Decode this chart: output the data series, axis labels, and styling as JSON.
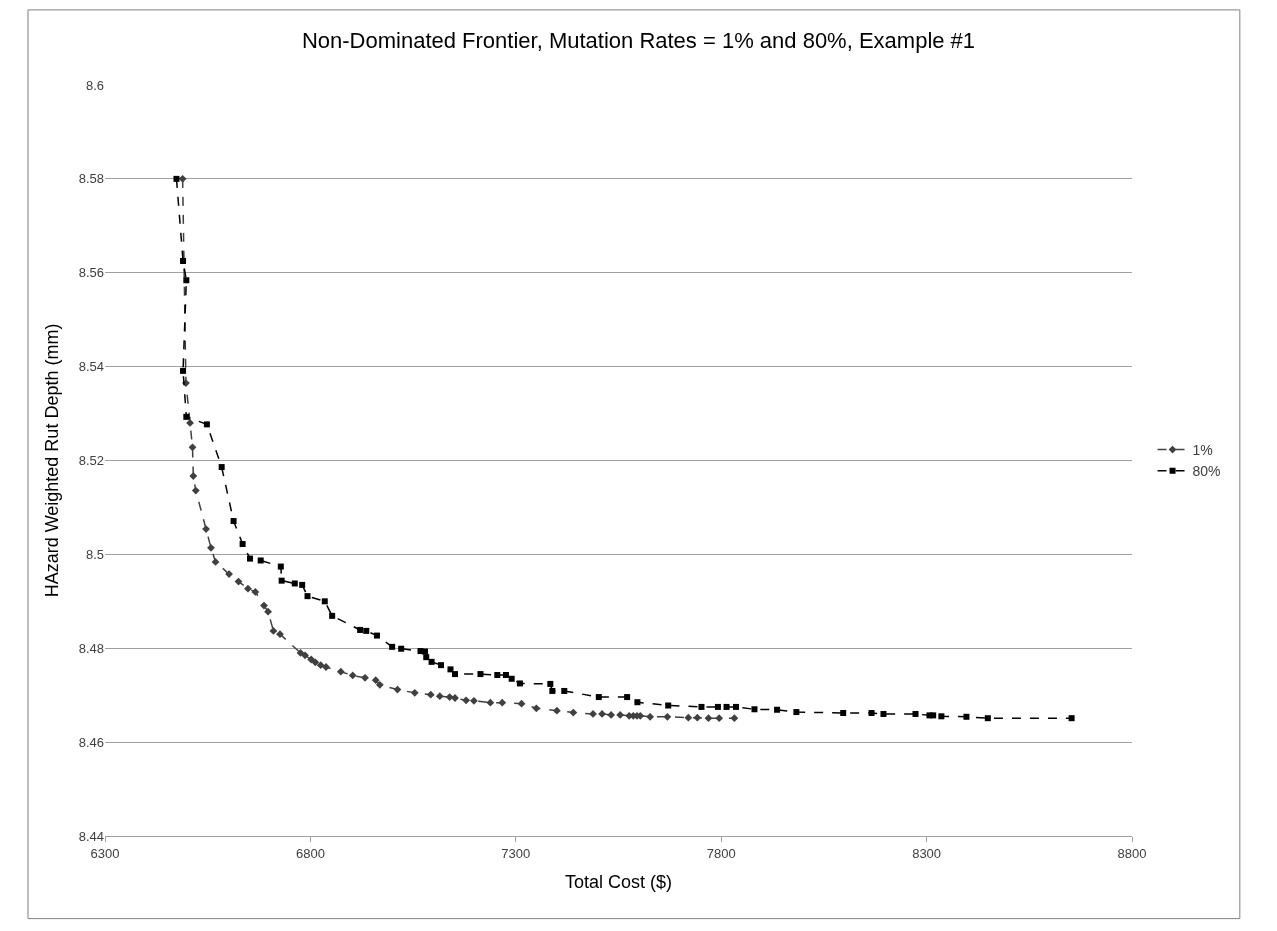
{
  "chart_data": {
    "type": "line",
    "title": "Non-Dominated Frontier, Mutation Rates = 1% and 80%, Example #1",
    "xlabel": "Total Cost ($)",
    "ylabel": "HAzard Weighted Rut Depth (mm)",
    "xlim": [
      6300,
      8800
    ],
    "xticks": [
      6300,
      6800,
      7300,
      7800,
      8300,
      8800
    ],
    "ylim": [
      8.44,
      8.6
    ],
    "yticks": [
      8.44,
      8.46,
      8.48,
      {
        "value": 8.5,
        "label": "8.5"
      },
      8.52,
      8.54,
      8.56,
      8.58,
      {
        "value": 8.6,
        "label": "8.6"
      }
    ],
    "grid": "y",
    "legend": "right",
    "line_style": "dashed",
    "series": [
      {
        "name": "1%",
        "color": "#404040",
        "marker": "diamond",
        "x": [
          6489,
          6497,
          6507,
          6513,
          6515,
          6521,
          6546,
          6558,
          6569,
          6602,
          6625,
          6648,
          6666,
          6687,
          6697,
          6710,
          6726,
          6776,
          6787,
          6802,
          6812,
          6825,
          6838,
          6874,
          6903,
          6933,
          6959,
          6969,
          7012,
          7054,
          7093,
          7115,
          7139,
          7152,
          7179,
          7198,
          7238,
          7267,
          7314,
          7350,
          7400,
          7440,
          7488,
          7510,
          7532,
          7554,
          7576,
          7586,
          7595,
          7603,
          7627,
          7669,
          7720,
          7742,
          7769,
          7795,
          7832
        ],
        "values": [
          8.58,
          8.5365,
          8.528,
          8.5228,
          8.5167,
          8.5136,
          8.5054,
          8.5014,
          8.4984,
          8.4958,
          8.4942,
          8.4927,
          8.492,
          8.4891,
          8.4878,
          8.4837,
          8.483,
          8.479,
          8.4785,
          8.4776,
          8.477,
          8.4764,
          8.476,
          8.475,
          8.4742,
          8.4737,
          8.4732,
          8.4722,
          8.4712,
          8.4705,
          8.4701,
          8.4698,
          8.4696,
          8.4694,
          8.4689,
          8.4688,
          8.4684,
          8.4684,
          8.4682,
          8.4672,
          8.4667,
          8.4663,
          8.466,
          8.466,
          8.4658,
          8.4658,
          8.4656,
          8.4656,
          8.4656,
          8.4656,
          8.4654,
          8.4654,
          8.4652,
          8.4652,
          8.4651,
          8.4651,
          8.4651
        ]
      },
      {
        "name": "80%",
        "color": "#000000",
        "marker": "square",
        "x": [
          6474,
          6490,
          6498,
          6490,
          6498,
          6548,
          6584,
          6613,
          6635,
          6653,
          6679,
          6728,
          6730,
          6762,
          6780,
          6793,
          6835,
          6853,
          6921,
          6936,
          6962,
          6999,
          7021,
          7068,
          7079,
          7082,
          7095,
          7118,
          7141,
          7152,
          7214,
          7255,
          7276,
          7290,
          7310,
          7384,
          7389,
          7418,
          7502,
          7571,
          7596,
          7671,
          7752,
          7792,
          7813,
          7836,
          7881,
          7936,
          7983,
          8097,
          8166,
          8195,
          8273,
          8307,
          8316,
          8336,
          8397,
          8449,
          8653
        ],
        "values": [
          8.58,
          8.5625,
          8.5584,
          8.5391,
          8.5293,
          8.5277,
          8.5186,
          8.5071,
          8.5022,
          8.4991,
          8.4987,
          8.4974,
          8.4944,
          8.4938,
          8.4935,
          8.4911,
          8.49,
          8.4869,
          8.4839,
          8.4837,
          8.4827,
          8.4803,
          8.4799,
          8.4794,
          8.4793,
          8.4781,
          8.4771,
          8.4764,
          8.4755,
          8.4745,
          8.4745,
          8.4743,
          8.4743,
          8.4735,
          8.4725,
          8.4724,
          8.4709,
          8.4709,
          8.4696,
          8.4696,
          8.4685,
          8.4678,
          8.4675,
          8.4675,
          8.4675,
          8.4675,
          8.467,
          8.4669,
          8.4664,
          8.4662,
          8.4662,
          8.466,
          8.466,
          8.4657,
          8.4657,
          8.4655,
          8.4654,
          8.4651,
          8.4651
        ]
      }
    ]
  }
}
